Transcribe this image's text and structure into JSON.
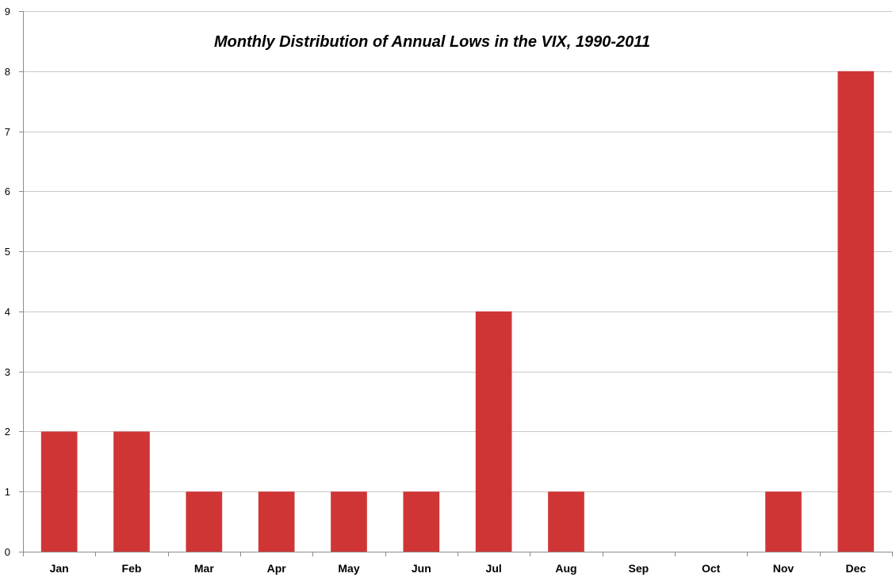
{
  "chart_data": {
    "type": "bar",
    "title": "Monthly Distribution of Annual Lows in the VIX, 1990-2011",
    "xlabel": "",
    "ylabel": "",
    "categories": [
      "Jan",
      "Feb",
      "Mar",
      "Apr",
      "May",
      "Jun",
      "Jul",
      "Aug",
      "Sep",
      "Oct",
      "Nov",
      "Dec"
    ],
    "values": [
      2,
      2,
      1,
      1,
      1,
      1,
      4,
      1,
      0,
      0,
      1,
      8
    ],
    "ylim": [
      0,
      9
    ],
    "yticks": [
      "0",
      "1",
      "2",
      "3",
      "4",
      "5",
      "6",
      "7",
      "8",
      "9"
    ],
    "grid": true,
    "legend": "none",
    "colors": {
      "bar": "#d03536",
      "grid": "#c8c8c8",
      "axis": "#8c8c8c"
    }
  }
}
